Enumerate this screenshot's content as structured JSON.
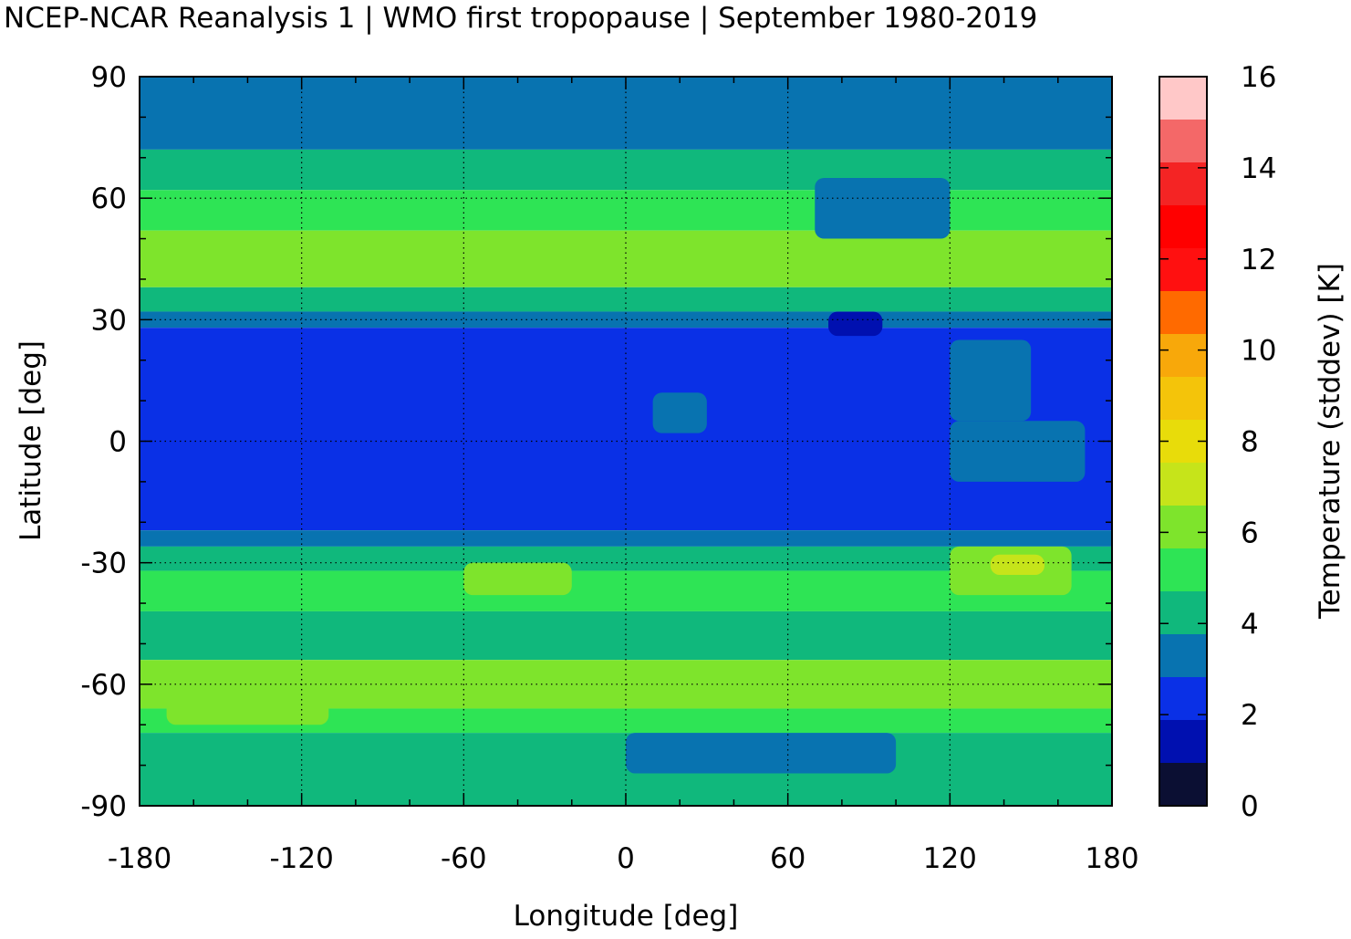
{
  "title": "NCEP-NCAR Reanalysis 1 | WMO first tropopause | September 1980-2019",
  "chart_data": {
    "type": "heatmap",
    "title": "NCEP-NCAR Reanalysis 1 | WMO first tropopause | September 1980-2019",
    "xlabel": "Longitude [deg]",
    "ylabel": "Latitude [deg]",
    "xlim": [
      -180,
      180
    ],
    "ylim": [
      -90,
      90
    ],
    "xticks": [
      -180,
      -120,
      -60,
      0,
      60,
      120,
      180
    ],
    "yticks": [
      90,
      60,
      30,
      0,
      -30,
      -60,
      -90
    ],
    "xtick_labels": [
      "-180",
      "-120",
      "-60",
      "0",
      "60",
      "120",
      "180"
    ],
    "ytick_labels": [
      "90",
      "60",
      "30",
      "0",
      "-30",
      "-60",
      "-90"
    ],
    "grid": true,
    "colorbar": {
      "label": "Temperature (stddev) [K]",
      "range": [
        0,
        16
      ],
      "ticks": [
        16,
        14,
        12,
        10,
        8,
        6,
        4,
        2,
        0
      ],
      "tick_labels": [
        "16",
        "14",
        "12",
        "10",
        "8",
        "6",
        "4",
        "2",
        "0"
      ],
      "colors": [
        "#0b0f33",
        "#0010b0",
        "#0a30e6",
        "#0873b0",
        "#10b87c",
        "#2ee455",
        "#7ee42c",
        "#c6e41a",
        "#e8dc0a",
        "#f4c40a",
        "#f8a80a",
        "#ff6a00",
        "#ff1010",
        "#ff0000",
        "#f42424",
        "#f46868",
        "#ffc8c8"
      ]
    },
    "latitude_bands": [
      {
        "lat": [
          72,
          90
        ],
        "value": 3.5
      },
      {
        "lat": [
          62,
          72
        ],
        "value": 4.5
      },
      {
        "lat": [
          52,
          62
        ],
        "value": 5.5
      },
      {
        "lat": [
          38,
          52
        ],
        "value": 6.0
      },
      {
        "lat": [
          32,
          38
        ],
        "value": 4.5
      },
      {
        "lat": [
          28,
          32
        ],
        "value": 3.5
      },
      {
        "lat": [
          -22,
          28
        ],
        "value": 2.5
      },
      {
        "lat": [
          -26,
          -22
        ],
        "value": 3.5
      },
      {
        "lat": [
          -32,
          -26
        ],
        "value": 4.5
      },
      {
        "lat": [
          -42,
          -32
        ],
        "value": 5.5
      },
      {
        "lat": [
          -54,
          -42
        ],
        "value": 4.5
      },
      {
        "lat": [
          -66,
          -54
        ],
        "value": 6.0
      },
      {
        "lat": [
          -72,
          -66
        ],
        "value": 5.5
      },
      {
        "lat": [
          -90,
          -72
        ],
        "value": 4.5
      }
    ],
    "regional_patches": [
      {
        "lon": [
          70,
          120
        ],
        "lat": [
          50,
          65
        ],
        "value": 3.5
      },
      {
        "lon": [
          120,
          165
        ],
        "lat": [
          -38,
          -26
        ],
        "value": 6.5
      },
      {
        "lon": [
          135,
          155
        ],
        "lat": [
          -33,
          -28
        ],
        "value": 7.5
      },
      {
        "lon": [
          75,
          95
        ],
        "lat": [
          26,
          32
        ],
        "value": 1.5
      },
      {
        "lon": [
          120,
          150
        ],
        "lat": [
          5,
          25
        ],
        "value": 3.5
      },
      {
        "lon": [
          120,
          170
        ],
        "lat": [
          -10,
          5
        ],
        "value": 3.5
      },
      {
        "lon": [
          10,
          30
        ],
        "lat": [
          2,
          12
        ],
        "value": 3.5
      },
      {
        "lon": [
          -170,
          -110
        ],
        "lat": [
          -70,
          -55
        ],
        "value": 6.5
      },
      {
        "lon": [
          0,
          100
        ],
        "lat": [
          -82,
          -72
        ],
        "value": 3.5
      },
      {
        "lon": [
          -60,
          -20
        ],
        "lat": [
          -38,
          -30
        ],
        "value": 6.0
      }
    ]
  }
}
